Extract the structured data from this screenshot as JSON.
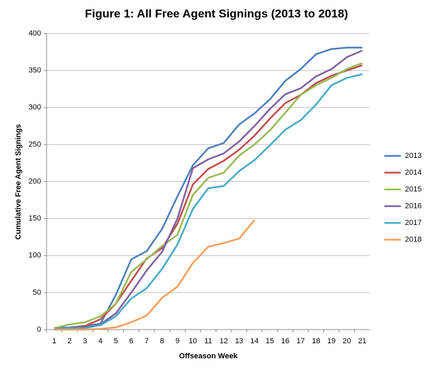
{
  "chart_data": {
    "type": "line",
    "title": "Figure 1: All Free Agent Signings (2013 to 2018)",
    "x_label": "Offseason Week",
    "y_label": "Cumulative Free Agent Signings",
    "categories": [
      "1",
      "2",
      "3",
      "4",
      "5",
      "6",
      "7",
      "8",
      "9",
      "10",
      "11",
      "12",
      "13",
      "14",
      "15",
      "16",
      "17",
      "18",
      "19",
      "20",
      "21"
    ],
    "ylim": [
      0,
      400
    ],
    "yticks": [
      0,
      50,
      100,
      150,
      200,
      250,
      300,
      350,
      400
    ],
    "grid": true,
    "legend": "right",
    "series": [
      {
        "name": "2013",
        "color": "#4a7ebb",
        "values": [
          2,
          3,
          5,
          8,
          47,
          95,
          106,
          136,
          180,
          222,
          245,
          252,
          277,
          292,
          311,
          336,
          352,
          372,
          379,
          381,
          381
        ]
      },
      {
        "name": "2014",
        "color": "#be4b48",
        "values": [
          1,
          2,
          5,
          14,
          35,
          66,
          96,
          110,
          143,
          196,
          217,
          228,
          243,
          262,
          285,
          306,
          317,
          333,
          343,
          350,
          357
        ]
      },
      {
        "name": "2015",
        "color": "#98b954",
        "values": [
          2,
          7,
          10,
          18,
          35,
          78,
          95,
          113,
          128,
          182,
          205,
          212,
          235,
          250,
          269,
          293,
          317,
          330,
          340,
          352,
          360
        ]
      },
      {
        "name": "2016",
        "color": "#7d60a0",
        "values": [
          1,
          2,
          3,
          7,
          22,
          50,
          80,
          105,
          150,
          218,
          230,
          238,
          254,
          275,
          298,
          318,
          326,
          342,
          352,
          368,
          377
        ]
      },
      {
        "name": "2017",
        "color": "#46aac5",
        "values": [
          1,
          2,
          2,
          6,
          18,
          42,
          56,
          82,
          115,
          163,
          191,
          194,
          214,
          229,
          249,
          270,
          283,
          304,
          330,
          340,
          345
        ]
      },
      {
        "name": "2018",
        "color": "#f59d56",
        "values": [
          0,
          0,
          0,
          1,
          3,
          10,
          19,
          43,
          58,
          90,
          112,
          117,
          123,
          148,
          null,
          null,
          null,
          null,
          null,
          null,
          null
        ]
      }
    ]
  }
}
